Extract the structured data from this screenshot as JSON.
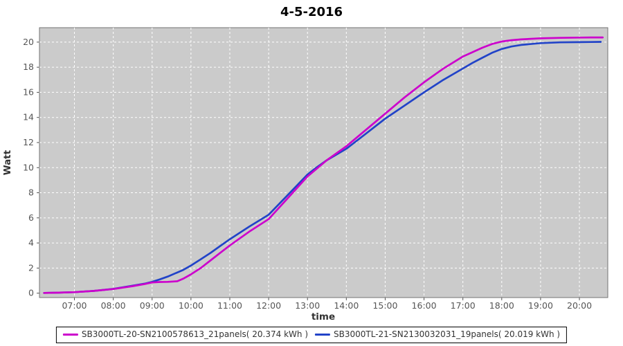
{
  "title": "4-5-2016",
  "colors": {
    "series_a": "#cc00cc",
    "series_b": "#2143c8",
    "plot_background": "#cbcbcb",
    "plot_border": "#737373",
    "gridline": "#ffffff",
    "tick_text": "#555555",
    "axis_label_text": "#333333",
    "title_text": "#000000",
    "legend_border": "#000000",
    "legend_background": "#ffffff"
  },
  "chart_data": {
    "type": "line",
    "title": "4-5-2016",
    "xlabel": "time",
    "ylabel": "Watt",
    "x_unit": "hour-of-day",
    "x_range": [
      6.1,
      20.73
    ],
    "y_range": [
      -0.35,
      21.15
    ],
    "grid": "white dashed, hourly vertical + every 2 units horizontal",
    "legend_position": "bottom",
    "x_ticks": [
      {
        "value": 7,
        "label": "07:00"
      },
      {
        "value": 8,
        "label": "08:00"
      },
      {
        "value": 9,
        "label": "09:00"
      },
      {
        "value": 10,
        "label": "10:00"
      },
      {
        "value": 11,
        "label": "11:00"
      },
      {
        "value": 12,
        "label": "12:00"
      },
      {
        "value": 13,
        "label": "13:00"
      },
      {
        "value": 14,
        "label": "14:00"
      },
      {
        "value": 15,
        "label": "15:00"
      },
      {
        "value": 16,
        "label": "16:00"
      },
      {
        "value": 17,
        "label": "17:00"
      },
      {
        "value": 18,
        "label": "18:00"
      },
      {
        "value": 19,
        "label": "19:00"
      },
      {
        "value": 20,
        "label": "20:00"
      }
    ],
    "y_ticks": [
      {
        "value": 0,
        "label": "0"
      },
      {
        "value": 2,
        "label": "2"
      },
      {
        "value": 4,
        "label": "4"
      },
      {
        "value": 6,
        "label": "6"
      },
      {
        "value": 8,
        "label": "8"
      },
      {
        "value": 10,
        "label": "10"
      },
      {
        "value": 12,
        "label": "12"
      },
      {
        "value": 14,
        "label": "14"
      },
      {
        "value": 16,
        "label": "16"
      },
      {
        "value": 18,
        "label": "18"
      },
      {
        "value": 20,
        "label": "20"
      }
    ],
    "series": [
      {
        "name": "SB3000TL-20-SN2100578613_21panels( 20.374 kWh )",
        "color": "#cc00cc",
        "total_kwh": 20.374,
        "points": [
          [
            6.22,
            0.02
          ],
          [
            6.6,
            0.04
          ],
          [
            7.0,
            0.08
          ],
          [
            7.5,
            0.18
          ],
          [
            8.0,
            0.33
          ],
          [
            8.5,
            0.56
          ],
          [
            8.8,
            0.72
          ],
          [
            9.0,
            0.85
          ],
          [
            9.2,
            0.89
          ],
          [
            9.4,
            0.9
          ],
          [
            9.65,
            0.95
          ],
          [
            9.8,
            1.15
          ],
          [
            10.0,
            1.5
          ],
          [
            10.25,
            2.0
          ],
          [
            10.5,
            2.6
          ],
          [
            10.75,
            3.2
          ],
          [
            11.0,
            3.8
          ],
          [
            11.5,
            4.9
          ],
          [
            12.0,
            5.9
          ],
          [
            12.5,
            7.6
          ],
          [
            13.0,
            9.3
          ],
          [
            13.25,
            9.95
          ],
          [
            13.5,
            10.6
          ],
          [
            14.0,
            11.7
          ],
          [
            14.5,
            13.0
          ],
          [
            15.0,
            14.3
          ],
          [
            15.5,
            15.6
          ],
          [
            16.0,
            16.8
          ],
          [
            16.5,
            17.9
          ],
          [
            17.0,
            18.85
          ],
          [
            17.25,
            19.2
          ],
          [
            17.5,
            19.55
          ],
          [
            17.75,
            19.85
          ],
          [
            18.0,
            20.05
          ],
          [
            18.25,
            20.15
          ],
          [
            18.5,
            20.22
          ],
          [
            19.0,
            20.3
          ],
          [
            19.5,
            20.34
          ],
          [
            20.0,
            20.36
          ],
          [
            20.3,
            20.37
          ],
          [
            20.6,
            20.37
          ]
        ]
      },
      {
        "name": "SB3000TL-21-SN2130032031_19panels( 20.019 kWh )",
        "color": "#2143c8",
        "total_kwh": 20.019,
        "points": [
          [
            6.22,
            0.02
          ],
          [
            6.6,
            0.04
          ],
          [
            7.0,
            0.08
          ],
          [
            7.5,
            0.18
          ],
          [
            8.0,
            0.34
          ],
          [
            8.5,
            0.6
          ],
          [
            8.8,
            0.75
          ],
          [
            9.0,
            0.9
          ],
          [
            9.2,
            1.1
          ],
          [
            9.4,
            1.32
          ],
          [
            9.65,
            1.65
          ],
          [
            9.8,
            1.85
          ],
          [
            10.0,
            2.2
          ],
          [
            10.25,
            2.7
          ],
          [
            10.5,
            3.2
          ],
          [
            10.75,
            3.75
          ],
          [
            11.0,
            4.3
          ],
          [
            11.5,
            5.3
          ],
          [
            12.0,
            6.25
          ],
          [
            12.5,
            7.85
          ],
          [
            13.0,
            9.45
          ],
          [
            13.25,
            10.05
          ],
          [
            13.5,
            10.6
          ],
          [
            14.0,
            11.5
          ],
          [
            14.5,
            12.7
          ],
          [
            15.0,
            13.9
          ],
          [
            15.5,
            14.95
          ],
          [
            16.0,
            16.0
          ],
          [
            16.5,
            17.0
          ],
          [
            17.0,
            17.9
          ],
          [
            17.25,
            18.35
          ],
          [
            17.5,
            18.75
          ],
          [
            17.75,
            19.15
          ],
          [
            18.0,
            19.45
          ],
          [
            18.25,
            19.65
          ],
          [
            18.5,
            19.78
          ],
          [
            19.0,
            19.92
          ],
          [
            19.5,
            19.98
          ],
          [
            20.0,
            20.0
          ],
          [
            20.3,
            20.01
          ],
          [
            20.55,
            20.02
          ]
        ]
      }
    ]
  },
  "legend": {
    "items": [
      {
        "label": "SB3000TL-20-SN2100578613_21panels( 20.374 kWh )",
        "color": "#cc00cc"
      },
      {
        "label": "SB3000TL-21-SN2130032031_19panels( 20.019 kWh )",
        "color": "#2143c8"
      }
    ]
  }
}
